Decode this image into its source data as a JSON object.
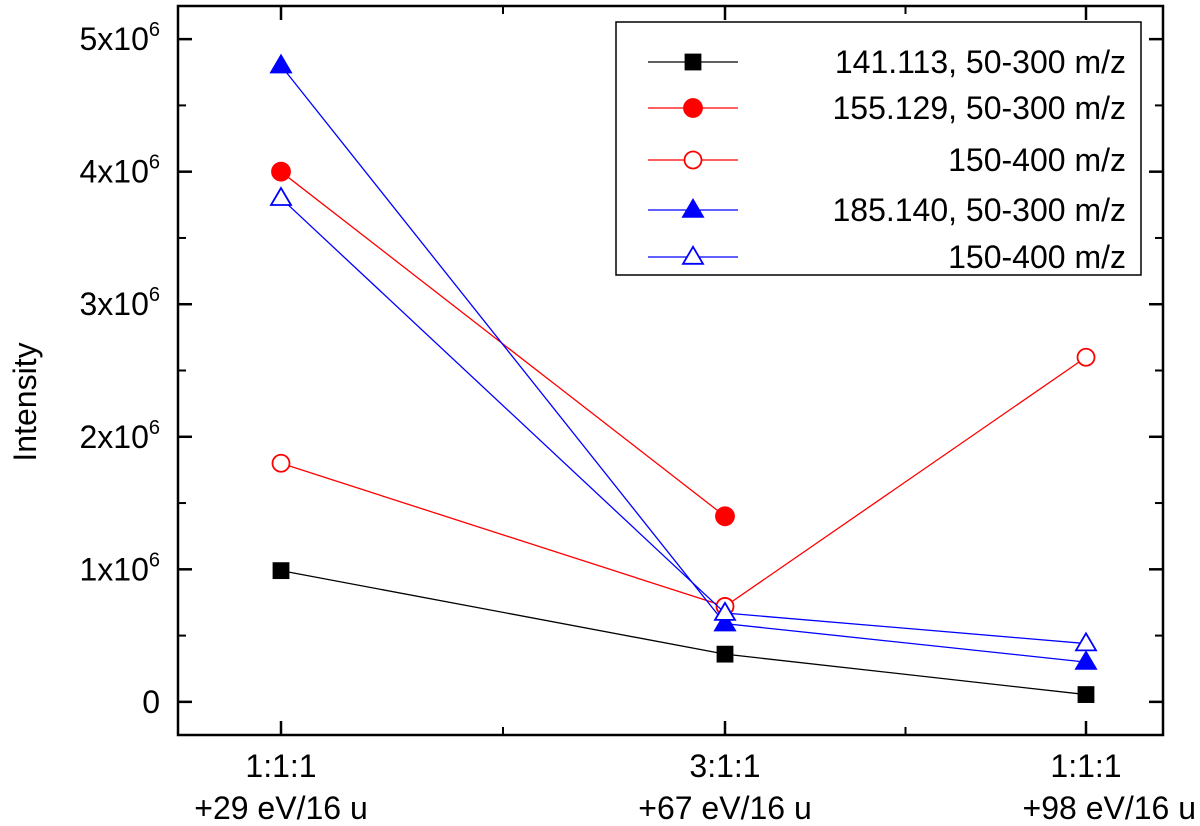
{
  "chart_data": {
    "type": "line",
    "title": "",
    "xlabel": "",
    "ylabel": "Intensity",
    "categories": [
      {
        "line1": "1:1:1",
        "line2": "+29 eV/16 u"
      },
      {
        "line1": "3:1:1",
        "line2": "+67 eV/16 u"
      },
      {
        "line1": "1:1:1",
        "line2": "+98 eV/16 u"
      }
    ],
    "ylim": [
      -250000,
      5250000
    ],
    "yticks": [
      {
        "value": 0,
        "mantissa": "0",
        "exp": ""
      },
      {
        "value": 1000000,
        "mantissa": "1x10",
        "exp": "6"
      },
      {
        "value": 2000000,
        "mantissa": "2x10",
        "exp": "6"
      },
      {
        "value": 3000000,
        "mantissa": "3x10",
        "exp": "6"
      },
      {
        "value": 4000000,
        "mantissa": "4x10",
        "exp": "6"
      },
      {
        "value": 5000000,
        "mantissa": "5x10",
        "exp": "6"
      }
    ],
    "legend_position": "top-right",
    "series": [
      {
        "name": "141.113, 50-300 m/z",
        "color": "#000000",
        "marker": "square",
        "filled": true,
        "values": [
          990000,
          360000,
          55000
        ]
      },
      {
        "name": "155.129, 50-300 m/z",
        "color": "#ff0000",
        "marker": "circle",
        "filled": true,
        "values": [
          4000000,
          1400000,
          null
        ]
      },
      {
        "name": "150-400 m/z",
        "color": "#ff0000",
        "marker": "circle",
        "filled": false,
        "values": [
          1800000,
          720000,
          2600000
        ]
      },
      {
        "name": "185.140, 50-300 m/z",
        "color": "#0000ff",
        "marker": "triangle",
        "filled": true,
        "values": [
          4800000,
          590000,
          300000
        ]
      },
      {
        "name": "150-400 m/z",
        "color": "#0000ff",
        "marker": "triangle",
        "filled": false,
        "values": [
          3800000,
          670000,
          440000
        ]
      }
    ]
  }
}
